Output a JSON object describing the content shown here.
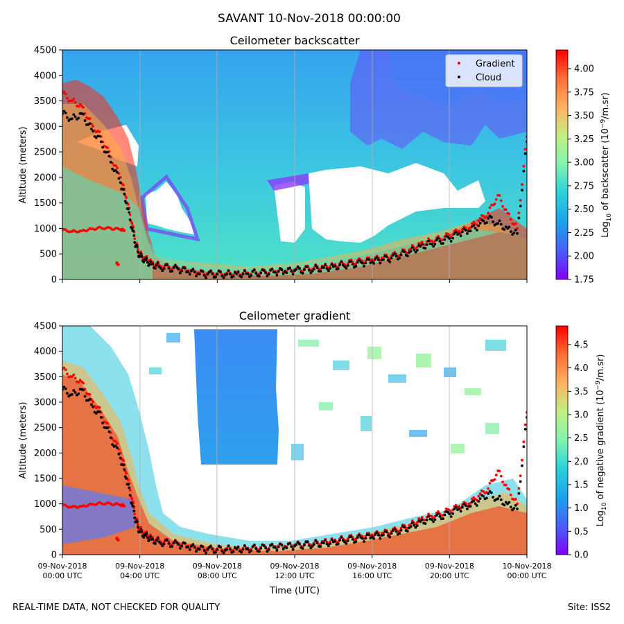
{
  "figure_title": "SAVANT 10-Nov-2018 00:00:00",
  "footer": {
    "left": "REAL-TIME DATA, NOT CHECKED FOR QUALITY",
    "right": "Site: ISS2"
  },
  "colors": {
    "gradient_points": "#ff0000",
    "cloud_points": "#000000",
    "colormap": [
      "#8000ff",
      "#3b6cf8",
      "#22b8e6",
      "#2ee6c7",
      "#96f49a",
      "#d6e06a",
      "#ffb360",
      "#ff6a35",
      "#ff0000"
    ]
  },
  "chart_data": [
    {
      "type": "heatmap",
      "title": "Ceilometer backscatter",
      "ylabel": "Altitude (meters)",
      "xlabel": "",
      "ylim": [
        0,
        4500
      ],
      "xlim_hours": [
        0,
        24
      ],
      "yticks": [
        0,
        500,
        1000,
        1500,
        2000,
        2500,
        3000,
        3500,
        4000,
        4500
      ],
      "xticks_hours": [
        0,
        4,
        8,
        12,
        16,
        20,
        24
      ],
      "grid": "vertical",
      "legend_placement": "top-right",
      "legend": [
        "Gradient",
        "Cloud"
      ],
      "colorbar": {
        "label": "Log10 of backscatter (10^-9/m.sr)",
        "label_main": "Log",
        "label_sub": "10",
        "label_mid": " of backscatter (10",
        "label_sup": "−9",
        "label_end": "/m.sr)",
        "min": 1.75,
        "max": 4.2,
        "ticks": [
          "1.75",
          "2.00",
          "2.25",
          "2.50",
          "2.75",
          "3.00",
          "3.25",
          "3.50",
          "3.75",
          "4.00"
        ]
      }
    },
    {
      "type": "heatmap",
      "title": "Ceilometer gradient",
      "ylabel": "Altitude (meters)",
      "xlabel": "Time (UTC)",
      "ylim": [
        0,
        4500
      ],
      "xlim_hours": [
        0,
        24
      ],
      "yticks": [
        0,
        500,
        1000,
        1500,
        2000,
        2500,
        3000,
        3500,
        4000,
        4500
      ],
      "xticks_hours": [
        0,
        4,
        8,
        12,
        16,
        20,
        24
      ],
      "xtick_labels": [
        [
          "09-Nov-2018",
          "00:00 UTC"
        ],
        [
          "09-Nov-2018",
          "04:00 UTC"
        ],
        [
          "09-Nov-2018",
          "08:00 UTC"
        ],
        [
          "09-Nov-2018",
          "12:00 UTC"
        ],
        [
          "09-Nov-2018",
          "16:00 UTC"
        ],
        [
          "09-Nov-2018",
          "20:00 UTC"
        ],
        [
          "10-Nov-2018",
          "00:00 UTC"
        ]
      ],
      "grid": "vertical",
      "colorbar": {
        "label": "Log10 of negative gradient (10^-9/m.sr)",
        "label_main": "Log",
        "label_sub": "10",
        "label_mid": " of negative gradient (10",
        "label_sup": "−9",
        "label_end": "/m.sr)",
        "min": 0.0,
        "max": 4.9,
        "ticks": [
          "0.0",
          "0.5",
          "1.0",
          "1.5",
          "2.0",
          "2.5",
          "3.0",
          "3.5",
          "4.0",
          "4.5"
        ]
      }
    }
  ],
  "cloud_series": {
    "name": "Cloud",
    "x_hours": [
      0.0,
      0.5,
      1.0,
      1.5,
      2.0,
      2.5,
      3.0,
      3.3,
      3.6,
      3.8,
      4.0,
      4.3,
      4.6,
      5.0,
      5.5,
      6.0,
      6.5,
      7.0,
      7.5,
      8.0,
      8.5,
      9.0,
      9.5,
      10.0,
      10.5,
      11.0,
      11.5,
      12.0,
      12.5,
      13.0,
      13.5,
      14.0,
      14.5,
      15.0,
      15.5,
      16.0,
      16.5,
      17.0,
      17.5,
      18.0,
      18.5,
      19.0,
      19.5,
      20.0,
      20.5,
      21.0,
      21.5,
      22.0,
      22.5,
      23.0,
      23.5,
      24.0
    ],
    "altitude_m": [
      3250,
      3150,
      3250,
      2950,
      2700,
      2300,
      1900,
      1500,
      1000,
      650,
      450,
      380,
      300,
      250,
      220,
      200,
      150,
      110,
      100,
      100,
      105,
      110,
      115,
      120,
      130,
      140,
      150,
      170,
      190,
      200,
      230,
      250,
      280,
      300,
      320,
      350,
      380,
      420,
      480,
      550,
      650,
      700,
      750,
      800,
      900,
      950,
      1050,
      1200,
      1100,
      1000,
      900,
      2700
    ]
  },
  "gradient_series": {
    "name": "Gradient",
    "x_hours": [
      0.0,
      0.5,
      1.0,
      1.5,
      2.0,
      2.5,
      3.0,
      3.3,
      3.6,
      3.8,
      4.0,
      4.3,
      4.6,
      5.0,
      5.5,
      6.0,
      6.5,
      7.0,
      7.5,
      8.0,
      8.5,
      9.0,
      9.5,
      10.0,
      10.5,
      11.0,
      11.5,
      12.0,
      12.5,
      13.0,
      13.5,
      14.0,
      14.5,
      15.0,
      15.5,
      16.0,
      16.5,
      17.0,
      17.5,
      18.0,
      18.5,
      19.0,
      19.5,
      20.0,
      20.5,
      21.0,
      21.5,
      22.0,
      22.5,
      23.0,
      23.5,
      24.0
    ],
    "altitude_m": [
      3650,
      3500,
      3400,
      3050,
      2800,
      2400,
      2000,
      1600,
      1100,
      700,
      500,
      420,
      340,
      280,
      250,
      220,
      170,
      130,
      120,
      120,
      125,
      130,
      135,
      140,
      150,
      160,
      170,
      190,
      210,
      230,
      260,
      280,
      310,
      340,
      360,
      390,
      420,
      460,
      520,
      600,
      700,
      760,
      800,
      870,
      950,
      1000,
      1150,
      1300,
      1650,
      1300,
      1000,
      2800
    ],
    "lower_layer_x_hours": [
      0.0,
      0.5,
      1.0,
      1.5,
      2.0,
      2.5,
      3.0,
      3.2,
      2.8,
      2.9
    ],
    "lower_layer_altitude_m": [
      970,
      940,
      950,
      990,
      1010,
      1000,
      980,
      960,
      320,
      290
    ]
  }
}
